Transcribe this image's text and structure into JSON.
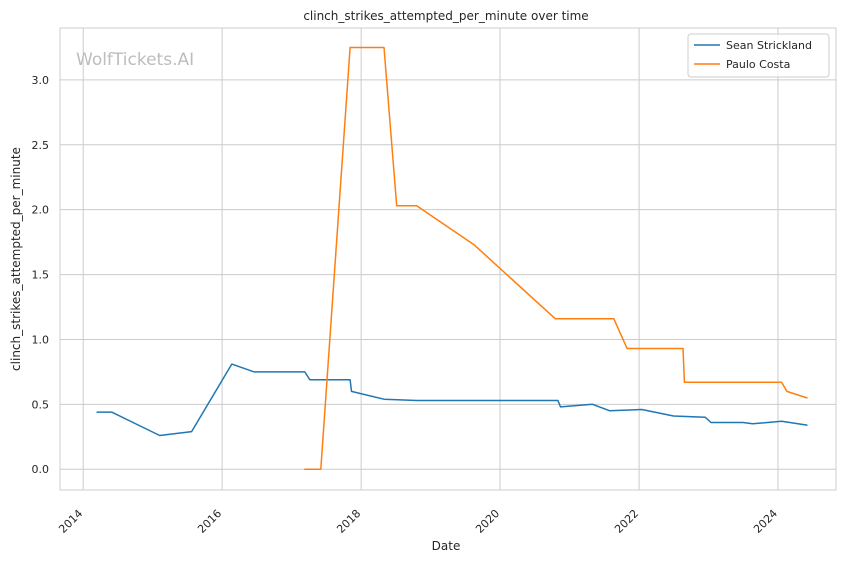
{
  "watermark": "WolfTickets.AI",
  "chart_data": {
    "type": "line",
    "title": "clinch_strikes_attempted_per_minute over time",
    "xlabel": "Date",
    "ylabel": "clinch_strikes_attempted_per_minute",
    "x_ticks": [
      "2014",
      "2016",
      "2018",
      "2020",
      "2022",
      "2024"
    ],
    "y_ticks": [
      "0.0",
      "0.5",
      "1.0",
      "1.5",
      "2.0",
      "2.5",
      "3.0"
    ],
    "xlim": [
      "2013-09-01",
      "2024-11-01"
    ],
    "ylim": [
      -0.16,
      3.4
    ],
    "grid": true,
    "legend_position": "top-right",
    "series": [
      {
        "name": "Sean Strickland",
        "color": "#1f77b4",
        "points": [
          [
            "2014-03-15",
            0.44
          ],
          [
            "2014-05-31",
            0.44
          ],
          [
            "2015-02-07",
            0.26
          ],
          [
            "2015-07-25",
            0.29
          ],
          [
            "2016-02-21",
            0.81
          ],
          [
            "2016-06-18",
            0.75
          ],
          [
            "2017-03-11",
            0.75
          ],
          [
            "2017-04-06",
            0.69
          ],
          [
            "2017-11-04",
            0.69
          ],
          [
            "2017-11-11",
            0.6
          ],
          [
            "2018-05-01",
            0.54
          ],
          [
            "2018-10-20",
            0.53
          ],
          [
            "2020-10-31",
            0.53
          ],
          [
            "2020-11-14",
            0.48
          ],
          [
            "2021-05-01",
            0.5
          ],
          [
            "2021-07-31",
            0.45
          ],
          [
            "2022-01-15",
            0.46
          ],
          [
            "2022-07-01",
            0.41
          ],
          [
            "2022-12-15",
            0.4
          ],
          [
            "2023-01-14",
            0.36
          ],
          [
            "2023-07-01",
            0.36
          ],
          [
            "2023-08-21",
            0.35
          ],
          [
            "2024-01-20",
            0.37
          ],
          [
            "2024-06-01",
            0.34
          ]
        ]
      },
      {
        "name": "Paulo Costa",
        "color": "#ff7f0e",
        "points": [
          [
            "2017-03-11",
            0.0
          ],
          [
            "2017-06-03",
            0.0
          ],
          [
            "2017-11-04",
            3.25
          ],
          [
            "2018-05-01",
            3.25
          ],
          [
            "2018-07-07",
            2.03
          ],
          [
            "2018-10-20",
            2.03
          ],
          [
            "2019-08-17",
            1.73
          ],
          [
            "2020-10-17",
            1.16
          ],
          [
            "2021-08-21",
            1.16
          ],
          [
            "2021-10-30",
            0.93
          ],
          [
            "2022-08-20",
            0.93
          ],
          [
            "2022-08-27",
            0.67
          ],
          [
            "2024-01-20",
            0.67
          ],
          [
            "2024-02-17",
            0.6
          ],
          [
            "2024-06-01",
            0.55
          ]
        ]
      }
    ]
  }
}
